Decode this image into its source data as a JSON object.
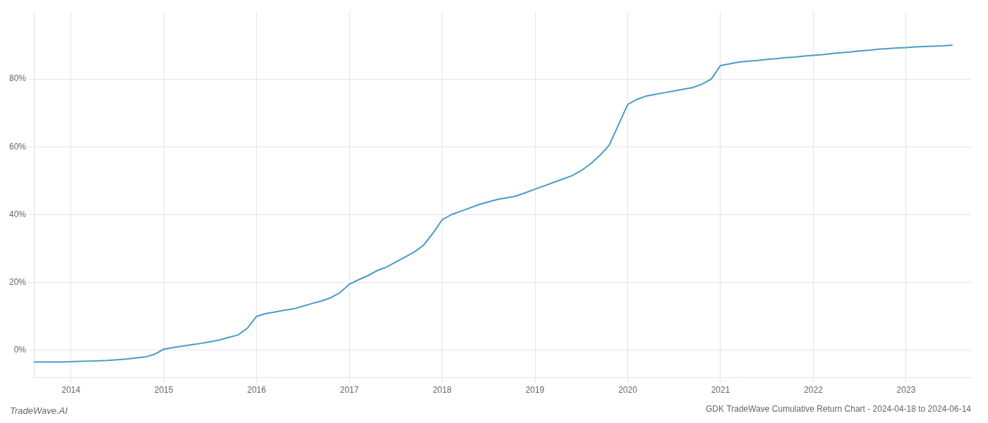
{
  "chart_data": {
    "type": "line",
    "title": "GDK TradeWave Cumulative Return Chart - 2024-04-18 to 2024-06-14",
    "annotations": [
      "TradeWave.AI"
    ],
    "x": [
      2013.6,
      2013.7,
      2013.8,
      2013.9,
      2014.0,
      2014.1,
      2014.2,
      2014.3,
      2014.4,
      2014.5,
      2014.6,
      2014.7,
      2014.8,
      2014.9,
      2015.0,
      2015.1,
      2015.2,
      2015.3,
      2015.4,
      2015.5,
      2015.6,
      2015.7,
      2015.8,
      2015.9,
      2016.0,
      2016.1,
      2016.2,
      2016.3,
      2016.4,
      2016.5,
      2016.6,
      2016.7,
      2016.8,
      2016.9,
      2017.0,
      2017.1,
      2017.2,
      2017.3,
      2017.4,
      2017.5,
      2017.6,
      2017.7,
      2017.8,
      2017.9,
      2018.0,
      2018.1,
      2018.2,
      2018.3,
      2018.4,
      2018.5,
      2018.6,
      2018.7,
      2018.8,
      2018.9,
      2019.0,
      2019.1,
      2019.2,
      2019.3,
      2019.4,
      2019.5,
      2019.6,
      2019.7,
      2019.8,
      2019.9,
      2020.0,
      2020.1,
      2020.2,
      2020.3,
      2020.4,
      2020.5,
      2020.6,
      2020.7,
      2020.8,
      2020.9,
      2021.0,
      2021.1,
      2021.2,
      2021.3,
      2021.4,
      2021.5,
      2021.6,
      2021.7,
      2021.8,
      2021.9,
      2022.0,
      2022.1,
      2022.2,
      2022.3,
      2022.4,
      2022.5,
      2022.6,
      2022.7,
      2022.8,
      2022.9,
      2023.0,
      2023.1,
      2023.2,
      2023.3,
      2023.4,
      2023.5
    ],
    "values": [
      -3.5,
      -3.5,
      -3.5,
      -3.5,
      -3.4,
      -3.3,
      -3.2,
      -3.1,
      -3.0,
      -2.8,
      -2.6,
      -2.3,
      -2.0,
      -1.2,
      0.3,
      0.8,
      1.2,
      1.6,
      2.0,
      2.5,
      3.0,
      3.8,
      4.5,
      6.5,
      10.0,
      10.8,
      11.3,
      11.8,
      12.2,
      13.0,
      13.8,
      14.5,
      15.5,
      17.0,
      19.5,
      20.8,
      22.0,
      23.5,
      24.5,
      26.0,
      27.5,
      29.0,
      31.0,
      34.5,
      38.5,
      40.0,
      41.0,
      42.0,
      43.0,
      43.8,
      44.5,
      45.0,
      45.5,
      46.5,
      47.5,
      48.5,
      49.5,
      50.5,
      51.5,
      53.0,
      55.0,
      57.5,
      60.5,
      66.5,
      72.5,
      74.0,
      75.0,
      75.5,
      76.0,
      76.5,
      77.0,
      77.5,
      78.5,
      80.0,
      84.0,
      84.5,
      85.0,
      85.3,
      85.5,
      85.8,
      86.0,
      86.3,
      86.5,
      86.8,
      87.0,
      87.2,
      87.5,
      87.8,
      88.0,
      88.3,
      88.5,
      88.8,
      89.0,
      89.2,
      89.3,
      89.5,
      89.6,
      89.7,
      89.8,
      90.0
    ],
    "color": "#4a9cc7",
    "xlim": [
      2013.6,
      2023.7
    ],
    "xticks": [
      2014,
      2015,
      2016,
      2017,
      2018,
      2019,
      2020,
      2021,
      2022,
      2023
    ],
    "ylim": [
      -8,
      100
    ],
    "yticks": [
      {
        "value": 0,
        "label": "0%"
      },
      {
        "value": 20,
        "label": "20%"
      },
      {
        "value": 40,
        "label": "40%"
      },
      {
        "value": 60,
        "label": "60%"
      },
      {
        "value": 80,
        "label": "80%"
      }
    ],
    "grid": true
  }
}
